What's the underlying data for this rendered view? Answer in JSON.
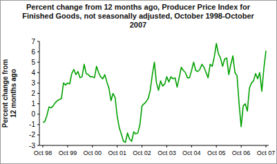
{
  "chart_data": {
    "type": "line",
    "title": "Percent change from 12 months ago, Producer Price Index for Finished Goods, not seasonally adjusted, October 1998-October 2007",
    "y_label": "Percent change from 12 months ago",
    "categories": [
      "Oct 98",
      null,
      null,
      null,
      null,
      null,
      null,
      null,
      null,
      null,
      null,
      null,
      "Oct 99",
      null,
      null,
      null,
      null,
      null,
      null,
      null,
      null,
      null,
      null,
      null,
      "Oct 00",
      null,
      null,
      null,
      null,
      null,
      null,
      null,
      null,
      null,
      null,
      null,
      "Oct 01",
      null,
      null,
      null,
      null,
      null,
      null,
      null,
      null,
      null,
      null,
      null,
      "Oct 02",
      null,
      null,
      null,
      null,
      null,
      null,
      null,
      null,
      null,
      null,
      null,
      "Oct 03",
      null,
      null,
      null,
      null,
      null,
      null,
      null,
      null,
      null,
      null,
      null,
      "Oct 04",
      null,
      null,
      null,
      null,
      null,
      null,
      null,
      null,
      null,
      null,
      null,
      "Oct 05",
      null,
      null,
      null,
      null,
      null,
      null,
      null,
      null,
      null,
      null,
      null,
      "Oct 06",
      null,
      null,
      null,
      null,
      null,
      null,
      null,
      null,
      null,
      null,
      null,
      "Oct 07"
    ],
    "values": [
      -0.8,
      -0.7,
      -0.1,
      0.7,
      0.6,
      0.8,
      1.1,
      1.3,
      1.4,
      1.5,
      3.0,
      2.8,
      3.0,
      2.9,
      3.9,
      4.3,
      3.8,
      4.1,
      3.5,
      3.6,
      4.8,
      3.9,
      3.8,
      3.6,
      3.6,
      3.5,
      4.6,
      4.0,
      3.6,
      3.4,
      3.8,
      3.1,
      2.5,
      1.3,
      2.0,
      1.6,
      -0.2,
      -1.3,
      -1.9,
      -2.6,
      -2.7,
      -1.8,
      -2.4,
      -2.6,
      -1.7,
      -1.9,
      -1.8,
      -1.0,
      0.8,
      1.0,
      1.2,
      1.5,
      2.3,
      3.8,
      5.0,
      3.0,
      2.3,
      3.2,
      2.7,
      2.9,
      3.6,
      3.1,
      3.6,
      3.4,
      3.5,
      2.6,
      3.5,
      4.5,
      4.2,
      4.0,
      3.5,
      3.5,
      4.2,
      5.0,
      4.2,
      4.1,
      4.3,
      4.8,
      4.5,
      4.0,
      3.5,
      4.8,
      4.6,
      5.5,
      6.8,
      5.8,
      5.4,
      4.6,
      5.3,
      5.4,
      3.8,
      4.8,
      5.6,
      4.0,
      3.7,
      1.0,
      -1.2,
      0.8,
      1.0,
      0.3,
      2.5,
      3.0,
      3.2,
      3.9,
      3.4,
      4.0,
      2.2,
      4.4,
      6.1
    ],
    "color": "#00a000",
    "ylim": [
      -3,
      7
    ],
    "yticks": [
      -3,
      -2,
      -1,
      0,
      1,
      2,
      3,
      4,
      5,
      6,
      7
    ],
    "grid": false
  }
}
